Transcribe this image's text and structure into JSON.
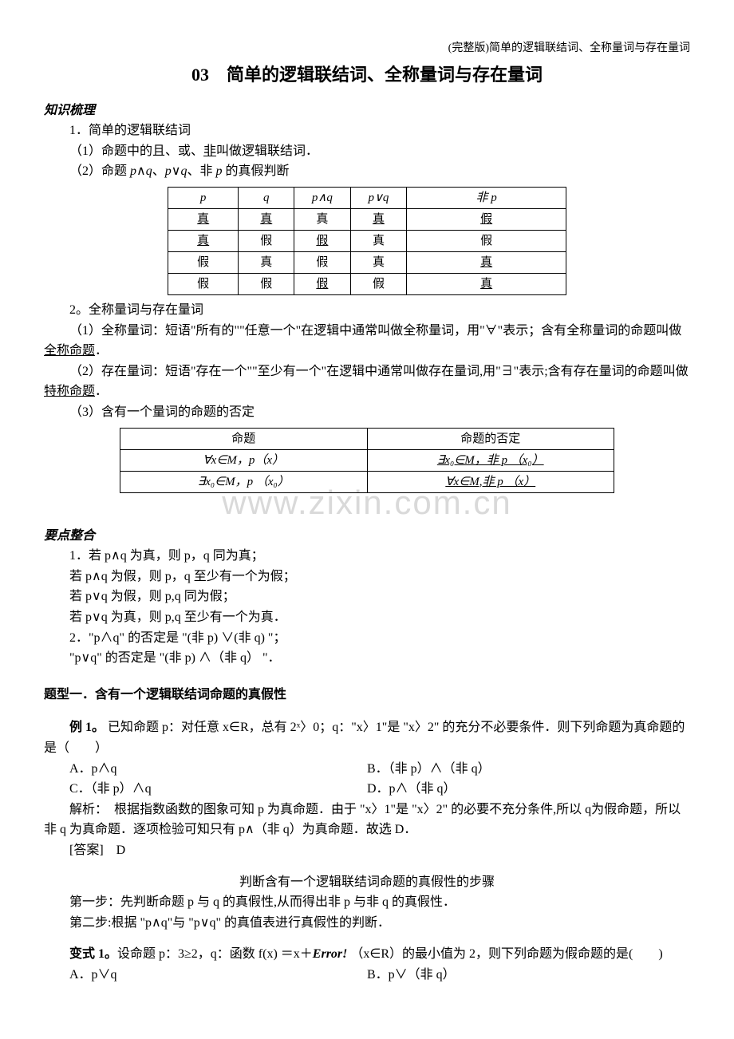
{
  "header_note": "(完整版)简单的逻辑联结词、全称量词与存在量词",
  "title": "03　简单的逻辑联结词、全称量词与存在量词",
  "sec1_head": "知识梳理",
  "sec1_line1": "1．简单的逻辑联结词",
  "sec1_line2a": "（1）命题中的且、或、",
  "sec1_line2b": "非",
  "sec1_line2c": "叫做逻辑联结词．",
  "sec1_line3a": "（2）命题 ",
  "sec1_line3b": "p",
  "sec1_line3c": "∧",
  "sec1_line3d": "q",
  "sec1_line3e": "、",
  "sec1_line3f": "p",
  "sec1_line3g": "∨",
  "sec1_line3h": "q",
  "sec1_line3i": "、非 ",
  "sec1_line3j": "p",
  "sec1_line3k": " 的真假判断",
  "truth_table": {
    "headers": [
      "p",
      "q",
      "p∧q",
      "p∨q",
      "非 p"
    ],
    "rows": [
      [
        {
          "t": "真",
          "u": true
        },
        {
          "t": "真",
          "u": true
        },
        {
          "t": "真",
          "u": false
        },
        {
          "t": "真",
          "u": true
        },
        {
          "t": "假",
          "u": true
        }
      ],
      [
        {
          "t": "真",
          "u": true
        },
        {
          "t": "假",
          "u": false
        },
        {
          "t": "假",
          "u": true
        },
        {
          "t": "真",
          "u": false
        },
        {
          "t": "假",
          "u": false
        }
      ],
      [
        {
          "t": "假",
          "u": false
        },
        {
          "t": "真",
          "u": false
        },
        {
          "t": "假",
          "u": false
        },
        {
          "t": "真",
          "u": false
        },
        {
          "t": "真",
          "u": true
        }
      ],
      [
        {
          "t": "假",
          "u": false
        },
        {
          "t": "假",
          "u": false
        },
        {
          "t": "假",
          "u": true
        },
        {
          "t": "假",
          "u": false
        },
        {
          "t": "真",
          "u": true
        }
      ]
    ],
    "col_widths": [
      "80px",
      "60px",
      "60px",
      "60px",
      "200px"
    ]
  },
  "sec2_line1": "2。全称量词与存在量词",
  "sec2_p1a": "（1）全称量词：短语\"所有的\"\"任意一个\"在逻辑中通常叫做全称量词，用\"∀\"表示；含有全称量词的命题叫做",
  "sec2_p1b": "全称命题",
  "sec2_p1c": "．",
  "sec2_p2a": "（2）存在量词：短语\"存在一个\"\"至少有一个\"在逻辑中通常叫做存在量词,用\"∃\"表示;含有存在量词的命题叫做",
  "sec2_p2b": "特称命题",
  "sec2_p2c": "．",
  "sec2_p3": "（3）含有一个量词的命题的否定",
  "neg_table": {
    "headers": [
      "命题",
      "命题的否定"
    ],
    "rows": [
      [
        "∀x∈M，p（x）",
        "∃x₀∈M，非 p （x₀）"
      ],
      [
        "∃x₀∈M，p （x₀）",
        "∀x∈M,非 p （x）"
      ]
    ],
    "row_underline": [
      [
        false,
        true
      ],
      [
        false,
        true
      ]
    ]
  },
  "watermark": "www.zixin.com.cn",
  "sec3_head": "要点整合",
  "sec3_lines": [
    "1．若 p∧q 为真，则 p，q 同为真；",
    "若 p∧q 为假，则 p，q 至少有一个为假；",
    "若 p∨q 为假，则 p,q 同为假；",
    "若 p∨q 为真，则 p,q 至少有一个为真．",
    "2．\"p∧q\" 的否定是 \"(非 p) ∨(非 q) \"；",
    "\"p∨q\" 的否定是 \"(非 p) ∧（非 q） \"．"
  ],
  "topic1_head": "题型一．含有一个逻辑联结词命题的真假性",
  "ex1_label": "例 1。",
  "ex1_body": "已知命题 p：对任意 x∈R，总有 2ˣ〉0；q：\"x〉1\"是 \"x〉2\" 的充分不必要条件．则下列命题为真命题的是（　　）",
  "ex1_A": "A．p∧q",
  "ex1_B": "B．（非 p）∧（非 q）",
  "ex1_C": "C．（非 p）∧q",
  "ex1_D": "D．p∧（非 q）",
  "ex1_sol": "解析：　根据指数函数的图象可知 p 为真命题．由于 \"x〉1\"是 \"x〉2\" 的必要不充分条件,所以 q为假命题，所以非 q 为真命题．逐项检验可知只有 p∧（非 q）为真命题．故选 D．",
  "ex1_ans": "[答案]　D",
  "steps_title": "判断含有一个逻辑联结词命题的真假性的步骤",
  "step1": "第一步：先判断命题 p 与 q 的真假性,从而得出非 p 与非 q 的真假性．",
  "step2": "第二步:根据 \"p∧q\"与 \"p∨q\" 的真值表进行真假性的判断．",
  "var1_label": "变式 1。",
  "var1_body_a": "设命题 p：3≥2，q：函数 f(x) ＝x＋",
  "var1_body_err": "Error!",
  "var1_body_b": " （x∈R）的最小值为 2，则下列命题为假命题的是(　　)",
  "var1_A": "A．p∨q",
  "var1_B": "B．p∨（非 q）"
}
